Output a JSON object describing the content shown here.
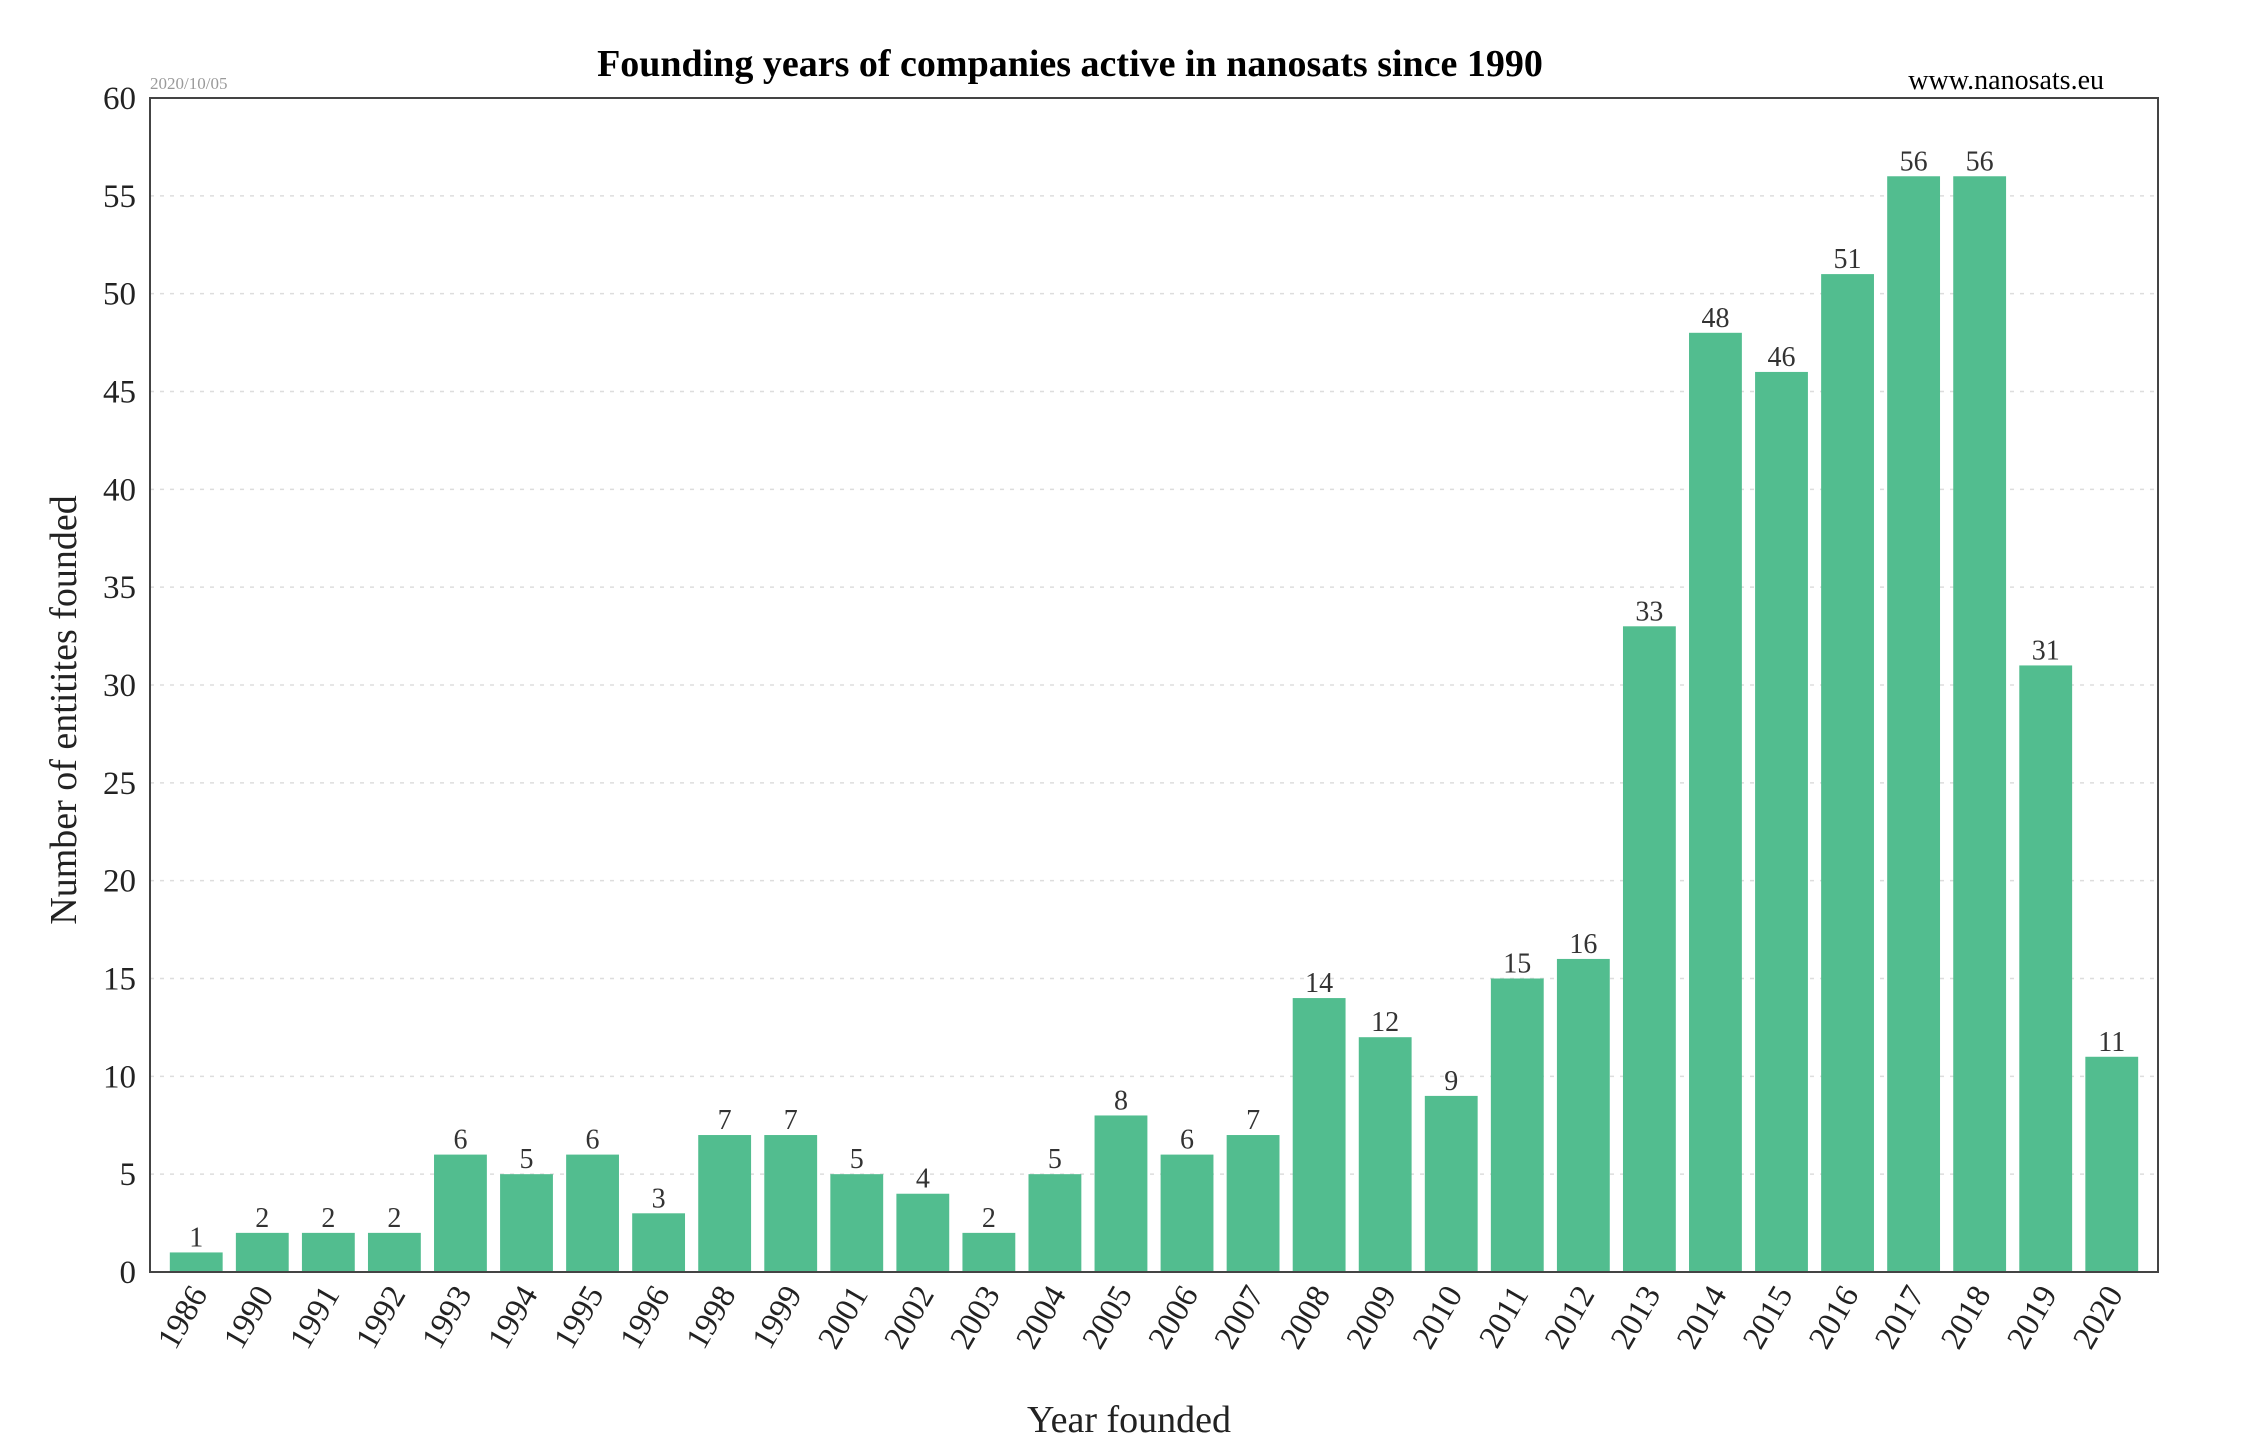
{
  "chart_data": {
    "type": "bar",
    "title": "Founding years of companies active in nanosats since 1990",
    "date_stamp": "2020/10/05",
    "source": "www.nanosats.eu",
    "xlabel": "Year founded",
    "ylabel": "Number of entitites founded",
    "ylim": [
      0,
      60
    ],
    "yticks": [
      0,
      5,
      10,
      15,
      20,
      25,
      30,
      35,
      40,
      45,
      50,
      55,
      60
    ],
    "grid": true,
    "bar_color": "#52bd8f",
    "categories": [
      "1986",
      "1990",
      "1991",
      "1992",
      "1993",
      "1994",
      "1995",
      "1996",
      "1998",
      "1999",
      "2001",
      "2002",
      "2003",
      "2004",
      "2005",
      "2006",
      "2007",
      "2008",
      "2009",
      "2010",
      "2011",
      "2012",
      "2013",
      "2014",
      "2015",
      "2016",
      "2017",
      "2018",
      "2019",
      "2020"
    ],
    "values": [
      1,
      2,
      2,
      2,
      6,
      5,
      6,
      3,
      7,
      7,
      5,
      4,
      2,
      5,
      8,
      6,
      7,
      14,
      12,
      9,
      15,
      16,
      33,
      48,
      46,
      51,
      56,
      56,
      31,
      11
    ],
    "data_labels": [
      "1",
      "2",
      "2",
      "2",
      "6",
      "5",
      "6",
      "3",
      "7",
      "7",
      "5",
      "4",
      "2",
      "5",
      "8",
      "6",
      "7",
      "14",
      "12",
      "9",
      "15",
      "16",
      "33",
      "48",
      "46",
      "51",
      "56",
      "56",
      "31",
      "11"
    ]
  }
}
